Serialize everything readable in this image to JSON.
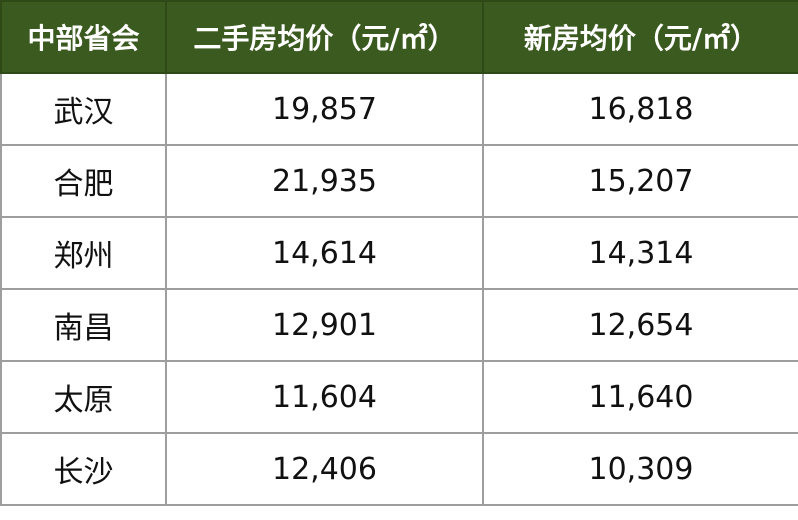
{
  "table": {
    "header": [
      "中部省会",
      "二手房均价（元/㎡）",
      "新房均价（元/㎡）"
    ],
    "rows": [
      [
        "武汉",
        "19,857",
        "16,818"
      ],
      [
        "合肥",
        "21,935",
        "15,207"
      ],
      [
        "郑州",
        "14,614",
        "14,314"
      ],
      [
        "南昌",
        "12,901",
        "12,654"
      ],
      [
        "太原",
        "11,604",
        "11,640"
      ],
      [
        "长沙",
        "12,406",
        "10,309"
      ]
    ]
  }
}
